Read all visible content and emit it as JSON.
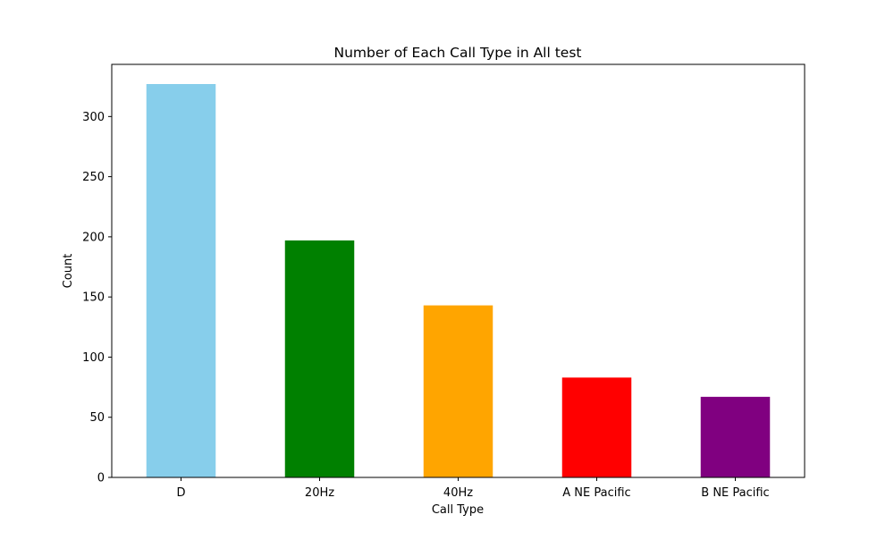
{
  "chart_data": {
    "type": "bar",
    "title": "Number of Each Call Type in All test",
    "xlabel": "Call Type",
    "ylabel": "Count",
    "categories": [
      "D",
      "20Hz",
      "40Hz",
      "A NE Pacific",
      "B NE Pacific"
    ],
    "values": [
      327,
      197,
      143,
      83,
      67
    ],
    "colors": [
      "#87ceeb",
      "#008000",
      "#ffa500",
      "#ff0000",
      "#800080"
    ],
    "ylim": [
      0,
      343.35
    ],
    "yticks": [
      0,
      50,
      100,
      150,
      200,
      250,
      300
    ],
    "grid": false,
    "legend": "none"
  }
}
